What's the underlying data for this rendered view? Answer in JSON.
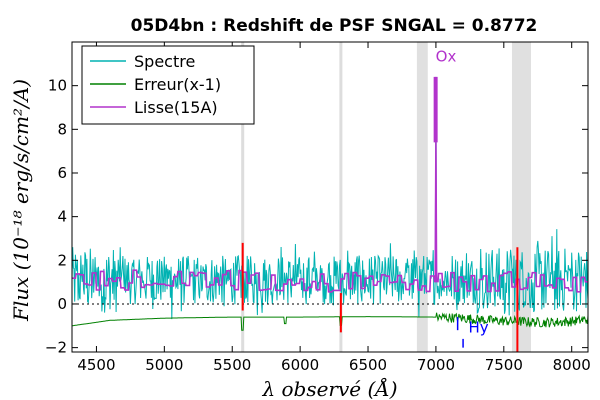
{
  "chart_data": {
    "type": "line",
    "title": "05D4bn : Redshift de PSF SNGAL = 0.8772",
    "xlabel": "λ observé (Å)",
    "ylabel": "Flux (10⁻¹⁸ erg/s/cm²/A)",
    "xlim": [
      4320,
      8120
    ],
    "ylim": [
      -2.2,
      12.0
    ],
    "xticks": [
      4500,
      5000,
      5500,
      6000,
      6500,
      7000,
      7500,
      8000
    ],
    "yticks": [
      -2,
      0,
      2,
      4,
      6,
      8,
      10
    ],
    "grid": false,
    "legend_position": "top-left",
    "series": [
      {
        "name": "Spectre",
        "color": "#00b2b2",
        "mean": 1.1,
        "scatter": 0.8,
        "peaks": [
          {
            "x": 6998,
            "y": 10.4
          }
        ]
      },
      {
        "name": "Erreur(x-1)",
        "color": "#008000",
        "x": [
          4320,
          4600,
          5000,
          5500,
          6000,
          6500,
          7000,
          7200,
          7400,
          7600,
          7800,
          8000,
          8120
        ],
        "y": [
          -1.0,
          -0.75,
          -0.65,
          -0.6,
          -0.6,
          -0.58,
          -0.6,
          -0.65,
          -0.75,
          -0.8,
          -0.85,
          -0.8,
          -0.7
        ]
      },
      {
        "name": "Lisse(15A)",
        "color": "#b233cc",
        "mean": 1.05,
        "scatter": 0.25,
        "peaks": [
          {
            "x": 6998,
            "y": 7.4
          }
        ]
      }
    ],
    "sky_bands": [
      [
        6860,
        6940
      ],
      [
        7560,
        7700
      ]
    ],
    "sky_lines": [
      5577,
      6300
    ],
    "red_marks": [
      {
        "x": 5577,
        "y1": -0.3,
        "y2": 2.8
      },
      {
        "x": 6300,
        "y1": -1.3,
        "y2": 0.5
      },
      {
        "x": 7600,
        "y1": -2.2,
        "y2": 2.6
      }
    ],
    "line_markers": [
      {
        "label": "Ox",
        "x": 6998,
        "text_y": 11.1,
        "color": "#b233cc",
        "bar": [
          7.4,
          10.4
        ]
      },
      {
        "label": "Hy",
        "x": 7240,
        "text_y": -1.3,
        "color": "#0000ff",
        "bar_x": 7160,
        "bar": [
          -1.2,
          -0.6
        ]
      }
    ],
    "extra_marks": [
      {
        "x": 7200,
        "y1": -2.0,
        "y2": -1.6,
        "color": "#0000ff"
      }
    ],
    "zero_line": 0
  }
}
